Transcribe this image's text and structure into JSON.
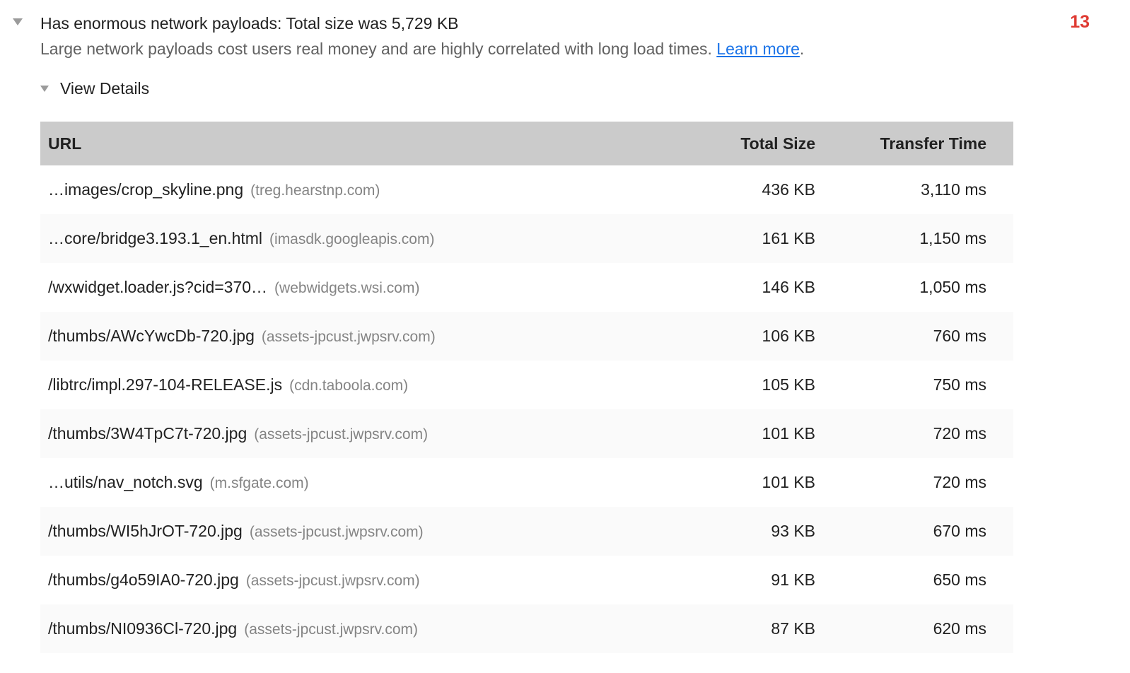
{
  "audit": {
    "title": "Has enormous network payloads: Total size was 5,729 KB",
    "description": "Large network payloads cost users real money and are highly correlated with long load times.",
    "learn_more_label": "Learn more",
    "period": ".",
    "count_badge": "13",
    "view_details_label": "View Details"
  },
  "icons": {
    "audit_expand": "triangle-down",
    "view_details_expand": "triangle-down"
  },
  "colors": {
    "badge_red": "#df3a32",
    "link_blue": "#1a73e8",
    "table_header_bg": "#cbcbcb",
    "row_alt_bg": "#fafafa",
    "title_text": "#212121",
    "description_text": "#616161",
    "host_text": "#848484",
    "icon_gray": "#9b9b9b"
  },
  "table": {
    "columns": [
      "URL",
      "Total Size",
      "Transfer Time"
    ],
    "rows": [
      {
        "url": "…images/crop_skyline.png",
        "host": "(treg.hearstnp.com)",
        "size": "436 KB",
        "time": "3,110 ms"
      },
      {
        "url": "…core/bridge3.193.1_en.html",
        "host": "(imasdk.googleapis.com)",
        "size": "161 KB",
        "time": "1,150 ms"
      },
      {
        "url": "/wxwidget.loader.js?cid=370…",
        "host": "(webwidgets.wsi.com)",
        "size": "146 KB",
        "time": "1,050 ms"
      },
      {
        "url": "/thumbs/AWcYwcDb-720.jpg",
        "host": "(assets-jpcust.jwpsrv.com)",
        "size": "106 KB",
        "time": "760 ms"
      },
      {
        "url": "/libtrc/impl.297-104-RELEASE.js",
        "host": "(cdn.taboola.com)",
        "size": "105 KB",
        "time": "750 ms"
      },
      {
        "url": "/thumbs/3W4TpC7t-720.jpg",
        "host": "(assets-jpcust.jwpsrv.com)",
        "size": "101 KB",
        "time": "720 ms"
      },
      {
        "url": "…utils/nav_notch.svg",
        "host": "(m.sfgate.com)",
        "size": "101 KB",
        "time": "720 ms"
      },
      {
        "url": "/thumbs/WI5hJrOT-720.jpg",
        "host": "(assets-jpcust.jwpsrv.com)",
        "size": "93 KB",
        "time": "670 ms"
      },
      {
        "url": "/thumbs/g4o59IA0-720.jpg",
        "host": "(assets-jpcust.jwpsrv.com)",
        "size": "91 KB",
        "time": "650 ms"
      },
      {
        "url": "/thumbs/NI0936Cl-720.jpg",
        "host": "(assets-jpcust.jwpsrv.com)",
        "size": "87 KB",
        "time": "620 ms"
      }
    ]
  }
}
